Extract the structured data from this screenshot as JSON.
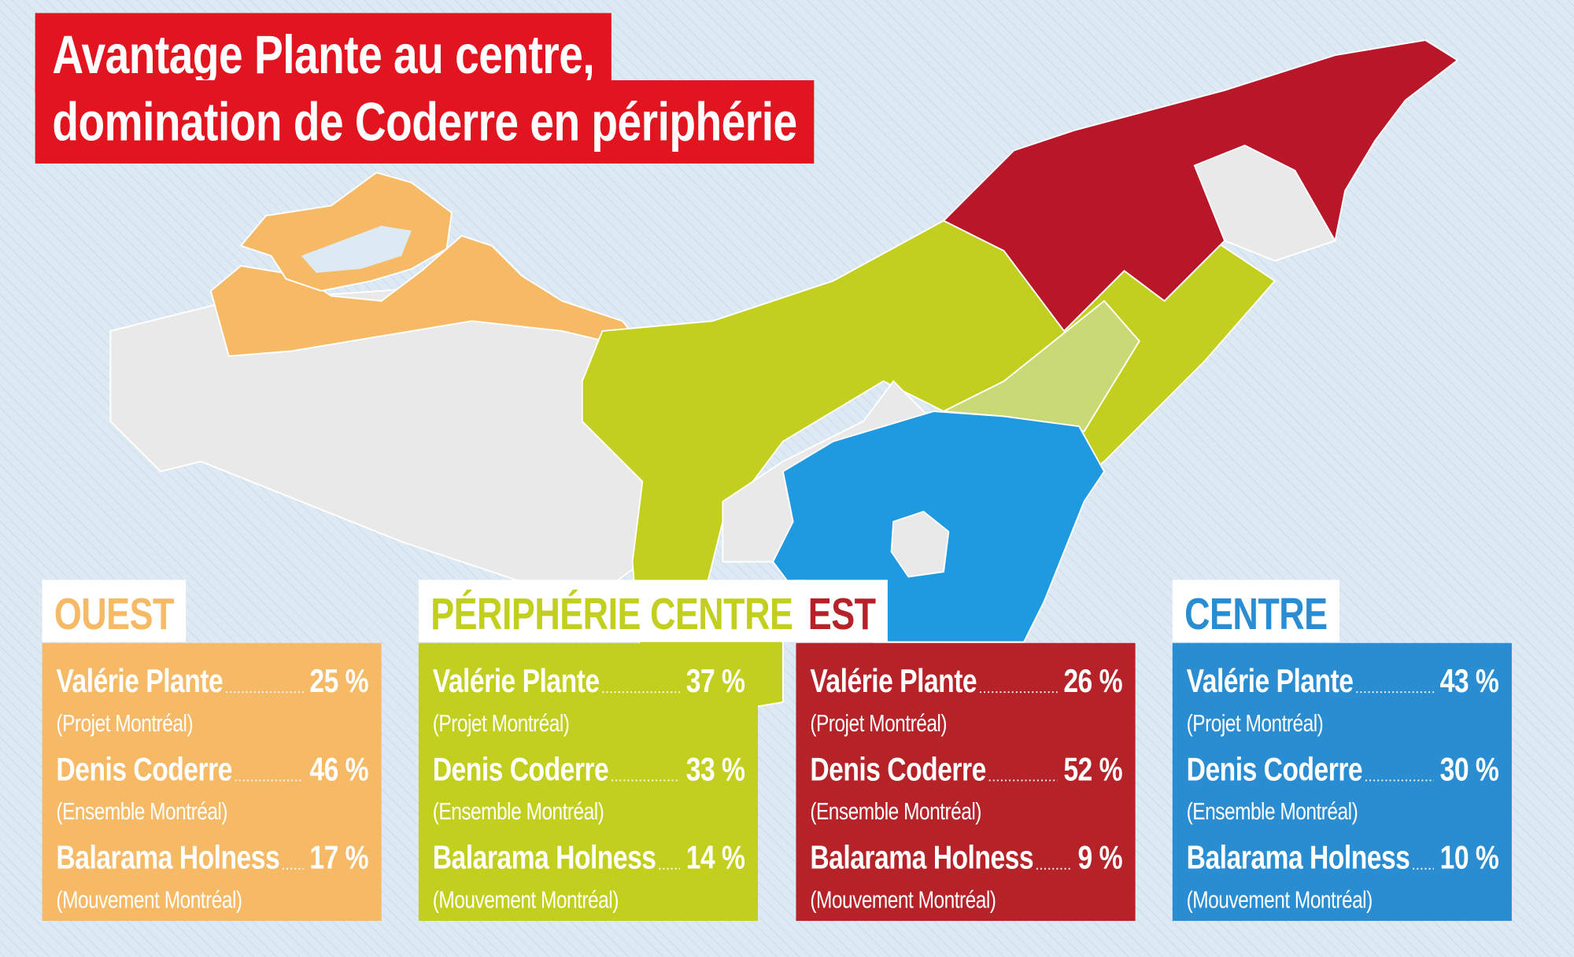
{
  "title": {
    "lines": [
      "Avantage Plante au centre,",
      "domination de Coderre en périphérie"
    ]
  },
  "regions": [
    {
      "name": "OUEST",
      "color": "#f6b965",
      "candidates": [
        {
          "name": "Valérie Plante",
          "party": "(Projet Montréal)",
          "result": "25 %"
        },
        {
          "name": "Denis Coderre",
          "party": "(Ensemble Montréal)",
          "result": "46 %"
        },
        {
          "name": "Balarama Holness",
          "party": "(Mouvement Montréal)",
          "result": "17 %"
        }
      ]
    },
    {
      "name": "PÉRIPHÉRIE CENTRE",
      "color": "#c2cf1f",
      "candidates": [
        {
          "name": "Valérie Plante",
          "party": "(Projet Montréal)",
          "result": "37 %"
        },
        {
          "name": "Denis Coderre",
          "party": "(Ensemble Montréal)",
          "result": "33 %"
        },
        {
          "name": "Balarama Holness",
          "party": "(Mouvement Montréal)",
          "result": "14 %"
        }
      ]
    },
    {
      "name": "EST",
      "color": "#b52228",
      "candidates": [
        {
          "name": "Valérie Plante",
          "party": "(Projet Montréal)",
          "result": "26 %"
        },
        {
          "name": "Denis Coderre",
          "party": "(Ensemble Montréal)",
          "result": "52 %"
        },
        {
          "name": "Balarama Holness",
          "party": "(Mouvement Montréal)",
          "result": "9 %"
        }
      ]
    },
    {
      "name": "CENTRE",
      "color": "#2a8dd2",
      "candidates": [
        {
          "name": "Valérie Plante",
          "party": "(Projet Montréal)",
          "result": "43 %"
        },
        {
          "name": "Denis Coderre",
          "party": "(Ensemble Montréal)",
          "result": "30 %"
        },
        {
          "name": "Balarama Holness",
          "party": "(Mouvement Montréal)",
          "result": "10 %"
        }
      ]
    }
  ]
}
